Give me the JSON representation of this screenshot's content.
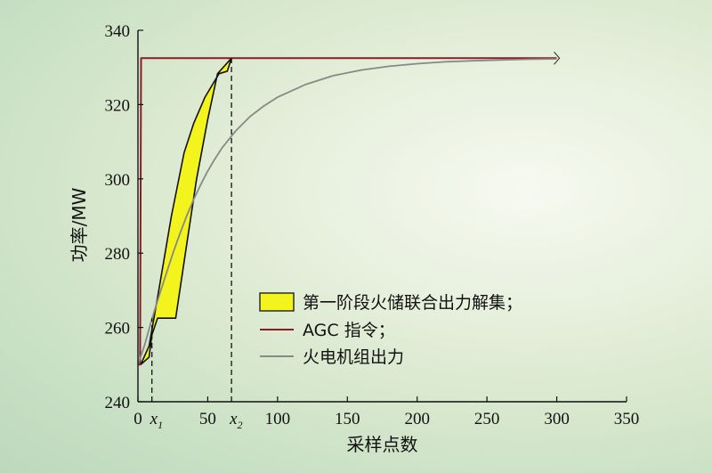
{
  "chart_data": {
    "type": "line",
    "xlabel": "采样点数",
    "ylabel": "功率/MW",
    "xlim": [
      0,
      350
    ],
    "ylim": [
      240,
      340
    ],
    "x_ticks": [
      0,
      50,
      100,
      150,
      200,
      250,
      300,
      350
    ],
    "x_tick_labels": [
      "0",
      "50",
      "100",
      "150",
      "200",
      "250",
      "300",
      "350"
    ],
    "y_ticks": [
      240,
      260,
      280,
      300,
      320,
      340
    ],
    "y_tick_labels": [
      "240",
      "260",
      "280",
      "300",
      "320",
      "340"
    ],
    "grid": false,
    "legend_position": "center-right",
    "markers": [
      {
        "label": "x",
        "subscript": "1",
        "x": 10
      },
      {
        "label": "x",
        "subscript": "2",
        "x": 67
      }
    ],
    "series": [
      {
        "name": "第一阶段火储联合出力解集；",
        "kind": "band",
        "color": "#f3f31e",
        "edge_color": "#111111",
        "upper": [
          [
            2,
            250
          ],
          [
            8,
            255
          ],
          [
            14,
            268
          ],
          [
            24,
            290
          ],
          [
            33,
            307
          ],
          [
            40,
            315
          ],
          [
            48,
            322
          ],
          [
            56,
            327
          ],
          [
            58,
            328.3
          ],
          [
            64,
            329
          ],
          [
            67,
            332.5
          ]
        ],
        "lower": [
          [
            2,
            250
          ],
          [
            8,
            252
          ],
          [
            10,
            258
          ],
          [
            14,
            262.5
          ],
          [
            21,
            262.5
          ],
          [
            27,
            262.5
          ],
          [
            34,
            280
          ],
          [
            42,
            300
          ],
          [
            50,
            316
          ],
          [
            57,
            328.3
          ]
        ]
      },
      {
        "name": "AGC 指令；",
        "kind": "line",
        "color": "#8b1c25",
        "points": [
          [
            0,
            250
          ],
          [
            1.5,
            250
          ],
          [
            2.2,
            332.5
          ],
          [
            300,
            332.5
          ]
        ]
      },
      {
        "name": "火电机组出力",
        "kind": "line",
        "color": "#858a85",
        "points": [
          [
            0,
            250
          ],
          [
            5,
            255.5
          ],
          [
            10,
            262.3
          ],
          [
            15,
            268.3
          ],
          [
            20,
            274.2
          ],
          [
            25,
            279.9
          ],
          [
            30,
            285.2
          ],
          [
            35,
            290.1
          ],
          [
            40,
            294.5
          ],
          [
            45,
            298.5
          ],
          [
            50,
            302.1
          ],
          [
            55,
            305.3
          ],
          [
            60,
            308.2
          ],
          [
            70,
            312.9
          ],
          [
            80,
            316.7
          ],
          [
            90,
            319.6
          ],
          [
            100,
            322.0
          ],
          [
            120,
            325.4
          ],
          [
            140,
            327.8
          ],
          [
            160,
            329.3
          ],
          [
            180,
            330.3
          ],
          [
            200,
            331.0
          ],
          [
            220,
            331.5
          ],
          [
            240,
            331.8
          ],
          [
            260,
            332.0
          ],
          [
            280,
            332.2
          ],
          [
            300,
            332.3
          ]
        ]
      }
    ]
  }
}
